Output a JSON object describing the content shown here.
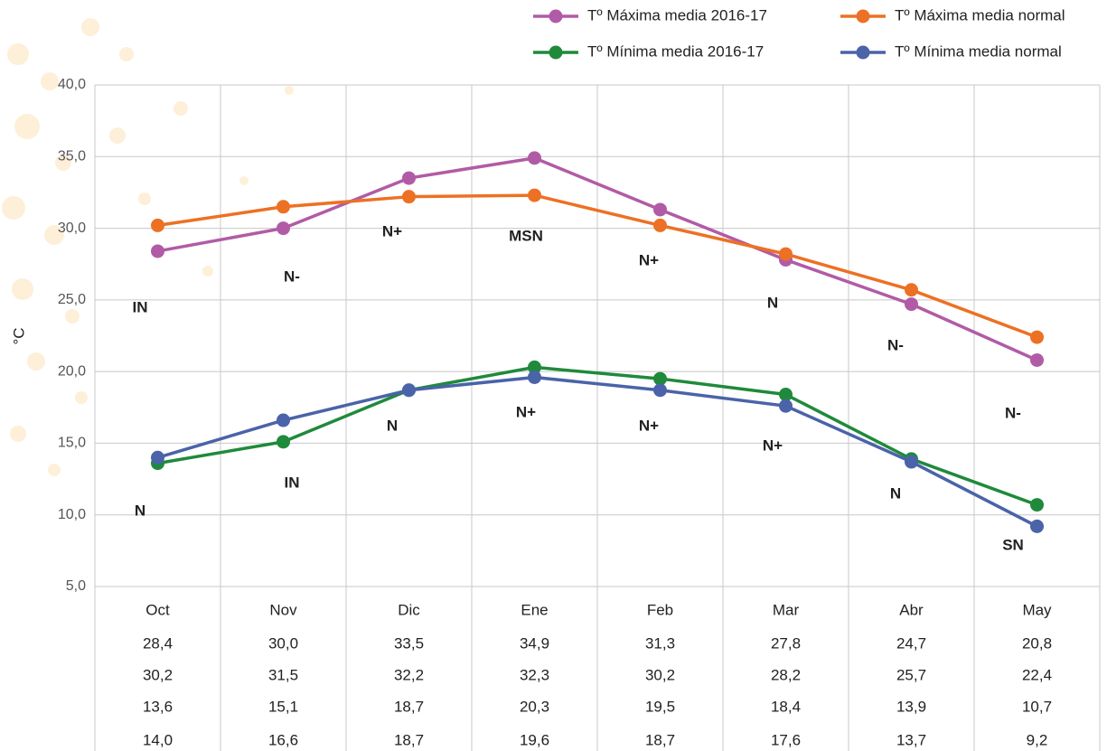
{
  "chart_data": {
    "type": "line",
    "y_label": "°C",
    "categories": [
      "Oct",
      "Nov",
      "Dic",
      "Ene",
      "Feb",
      "Mar",
      "Abr",
      "May"
    ],
    "series": [
      {
        "name": "Tº Máxima media 2016-17",
        "color": "#b15ba6",
        "values": [
          28.4,
          30.0,
          33.5,
          34.9,
          31.3,
          27.8,
          24.7,
          20.8
        ],
        "value_labels": [
          "28,4",
          "30,0",
          "33,5",
          "34,9",
          "31,3",
          "27,8",
          "24,7",
          "20,8"
        ]
      },
      {
        "name": "Tº Máxima media normal",
        "color": "#ec7124",
        "values": [
          30.2,
          31.5,
          32.2,
          32.3,
          30.2,
          28.2,
          25.7,
          22.4
        ],
        "value_labels": [
          "30,2",
          "31,5",
          "32,2",
          "32,3",
          "30,2",
          "28,2",
          "25,7",
          "22,4"
        ]
      },
      {
        "name": "Tº Mínima media 2016-17",
        "color": "#1f8a3b",
        "values": [
          13.6,
          15.1,
          18.7,
          20.3,
          19.5,
          18.4,
          13.9,
          10.7
        ],
        "value_labels": [
          "13,6",
          "15,1",
          "18,7",
          "20,3",
          "19,5",
          "18,4",
          "13,9",
          "10,7"
        ]
      },
      {
        "name": "Tº Mínima media normal",
        "color": "#4a63a9",
        "values": [
          14.0,
          16.6,
          18.7,
          19.6,
          18.7,
          17.6,
          13.7,
          9.2
        ],
        "value_labels": [
          "14,0",
          "16,6",
          "18,7",
          "19,6",
          "18,7",
          "17,6",
          "13,7",
          "9,2"
        ]
      }
    ],
    "annotations": [
      [
        "IN",
        "N-",
        "N+",
        "MSN",
        "N+",
        "N",
        "N-",
        "N-"
      ],
      [
        "N",
        "IN",
        "N",
        "N+",
        "N+",
        "N+",
        "N",
        "SN"
      ]
    ],
    "ylim": [
      5,
      40
    ],
    "yticks": [
      {
        "value": 5,
        "label": "5,0"
      },
      {
        "value": 10,
        "label": "10,0"
      },
      {
        "value": 15,
        "label": "15,0"
      },
      {
        "value": 20,
        "label": "20,0"
      },
      {
        "value": 25,
        "label": "25,0"
      },
      {
        "value": 30,
        "label": "30,0"
      },
      {
        "value": 35,
        "label": "35,0"
      },
      {
        "value": 40,
        "label": "40,0"
      }
    ],
    "grid": true
  }
}
